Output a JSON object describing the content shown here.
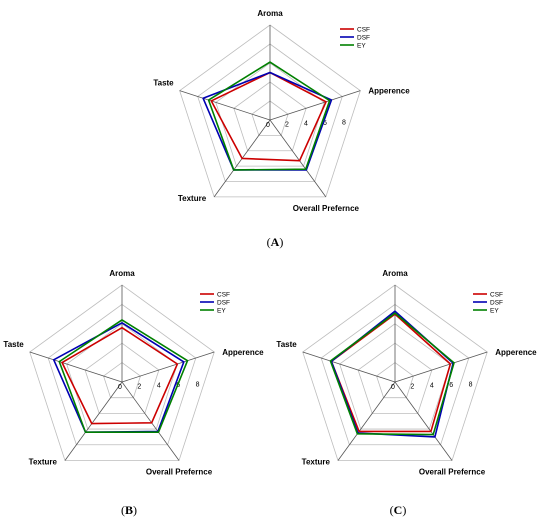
{
  "chart_data": [
    {
      "panel": "(A)",
      "panel_letter": "A",
      "type": "radar",
      "axes": [
        "Aroma",
        "Apperence",
        "Overall Prefernce",
        "Texture",
        "Taste"
      ],
      "ticks": [
        "0",
        "2",
        "4",
        "6",
        "8"
      ],
      "rlim": [
        0,
        10
      ],
      "legend": "top-right",
      "series": [
        {
          "name": "CSF",
          "color": "#cc0000",
          "values": [
            5.0,
            6.2,
            5.3,
            5.0,
            6.5
          ]
        },
        {
          "name": "DSF",
          "color": "#0000b3",
          "values": [
            5.0,
            6.8,
            6.5,
            6.5,
            7.4
          ]
        },
        {
          "name": "EY",
          "color": "#008000",
          "values": [
            6.1,
            6.6,
            6.4,
            6.5,
            6.8
          ]
        }
      ]
    },
    {
      "panel": "(B)",
      "panel_letter": "B",
      "type": "radar",
      "axes": [
        "Aroma",
        "Apperence",
        "Overall Prefernce",
        "Texture",
        "Taste"
      ],
      "ticks": [
        "0",
        "2",
        "4",
        "6",
        "8"
      ],
      "rlim": [
        0,
        10
      ],
      "legend": "top-right",
      "series": [
        {
          "name": "CSF",
          "color": "#cc0000",
          "values": [
            5.6,
            6.0,
            5.2,
            5.3,
            6.5
          ]
        },
        {
          "name": "DSF",
          "color": "#0000b3",
          "values": [
            6.1,
            6.7,
            6.3,
            6.4,
            7.4
          ]
        },
        {
          "name": "EY",
          "color": "#008000",
          "values": [
            6.4,
            7.1,
            6.4,
            6.4,
            6.8
          ]
        }
      ]
    },
    {
      "panel": "(C)",
      "panel_letter": "C",
      "type": "radar",
      "axes": [
        "Aroma",
        "Apperence",
        "Overall Prefernce",
        "Texture",
        "Taste"
      ],
      "ticks": [
        "0",
        "2",
        "4",
        "6",
        "8"
      ],
      "rlim": [
        0,
        10
      ],
      "legend": "top-right",
      "series": [
        {
          "name": "CSF",
          "color": "#cc0000",
          "values": [
            7.0,
            6.0,
            6.3,
            6.3,
            6.9
          ]
        },
        {
          "name": "DSF",
          "color": "#0000b3",
          "values": [
            7.3,
            6.3,
            7.0,
            6.5,
            6.9
          ]
        },
        {
          "name": "EY",
          "color": "#008000",
          "values": [
            7.1,
            6.4,
            6.7,
            6.6,
            7.0
          ]
        }
      ]
    }
  ]
}
